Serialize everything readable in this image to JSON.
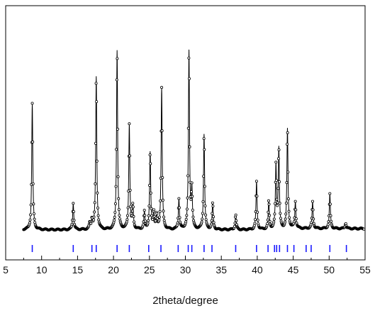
{
  "chart_data": {
    "type": "line",
    "title": "",
    "xlabel": "2theta/degree",
    "ylabel": "",
    "xlim": [
      5,
      55
    ],
    "ylim": [
      0,
      100
    ],
    "grid": false,
    "y_ticks_shown": false,
    "x_ticks": [
      5,
      10,
      15,
      20,
      25,
      30,
      35,
      40,
      45,
      50,
      55
    ],
    "x_tick_labels": [
      "5",
      "10",
      "15",
      "20",
      "25",
      "30",
      "35",
      "40",
      "45",
      "50",
      "55"
    ],
    "series": [
      {
        "role": "observed pattern (open circles)",
        "color": "#000000",
        "baseline": 2,
        "peaks": [
          {
            "x": 8.7,
            "height": 66
          },
          {
            "x": 14.4,
            "height": 14
          },
          {
            "x": 16.7,
            "height": 3
          },
          {
            "x": 17.0,
            "height": 5
          },
          {
            "x": 17.6,
            "height": 80
          },
          {
            "x": 20.5,
            "height": 94
          },
          {
            "x": 22.2,
            "height": 55
          },
          {
            "x": 22.7,
            "height": 12
          },
          {
            "x": 24.3,
            "height": 9
          },
          {
            "x": 25.1,
            "height": 40
          },
          {
            "x": 25.6,
            "height": 9
          },
          {
            "x": 26.0,
            "height": 7
          },
          {
            "x": 26.7,
            "height": 74
          },
          {
            "x": 29.1,
            "height": 16
          },
          {
            "x": 30.5,
            "height": 93
          },
          {
            "x": 30.9,
            "height": 20
          },
          {
            "x": 32.6,
            "height": 50
          },
          {
            "x": 33.8,
            "height": 14
          },
          {
            "x": 37.0,
            "height": 8
          },
          {
            "x": 39.9,
            "height": 25
          },
          {
            "x": 41.6,
            "height": 15
          },
          {
            "x": 42.6,
            "height": 33
          },
          {
            "x": 43.0,
            "height": 42
          },
          {
            "x": 44.2,
            "height": 52
          },
          {
            "x": 45.3,
            "height": 14
          },
          {
            "x": 47.7,
            "height": 14
          },
          {
            "x": 50.1,
            "height": 18
          },
          {
            "x": 52.3,
            "height": 3
          }
        ]
      },
      {
        "role": "reference reflection positions (tick marks)",
        "color": "#1a1aff",
        "x": [
          8.7,
          14.4,
          17.0,
          17.6,
          20.5,
          22.2,
          24.9,
          26.6,
          29.0,
          30.4,
          30.9,
          32.6,
          33.7,
          37.0,
          39.9,
          41.5,
          42.4,
          42.7,
          43.1,
          44.2,
          45.1,
          46.8,
          47.5,
          50.1,
          52.4
        ]
      }
    ]
  }
}
